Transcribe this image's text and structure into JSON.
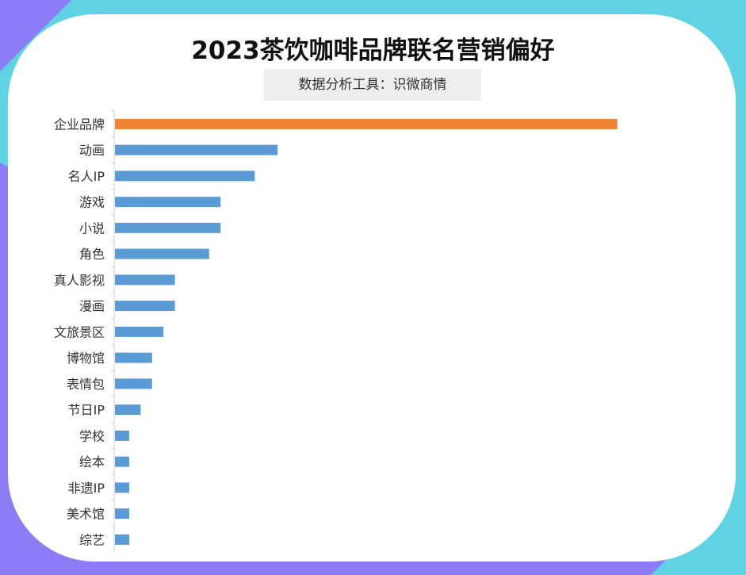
{
  "title": "2023茶饮咖啡品牌联名营销偏好",
  "subtitle": "数据分析工具：识微商情",
  "colors": {
    "highlight_bar": "#f08434",
    "bar": "#5b9bd5",
    "axis": "#cfcfcf",
    "label": "#333333"
  },
  "chart_data": {
    "type": "bar",
    "orientation": "horizontal",
    "title": "2023茶饮咖啡品牌联名营销偏好",
    "subtitle": "数据分析工具：识微商情",
    "xlabel": "",
    "ylabel": "",
    "xlim": [
      0,
      100
    ],
    "grid": false,
    "legend": "none",
    "categories": [
      "企业品牌",
      "动画",
      "名人IP",
      "游戏",
      "小说",
      "角色",
      "真人影视",
      "漫画",
      "文旅景区",
      "博物馆",
      "表情包",
      "节日IP",
      "学校",
      "绘本",
      "非遗IP",
      "美术馆",
      "综艺"
    ],
    "values": [
      88,
      28.5,
      24.5,
      18.5,
      18.5,
      16.5,
      10.5,
      10.5,
      8.5,
      6.5,
      6.5,
      4.5,
      2.5,
      2.5,
      2.5,
      2.5,
      2.5
    ],
    "highlight_index": 0
  }
}
